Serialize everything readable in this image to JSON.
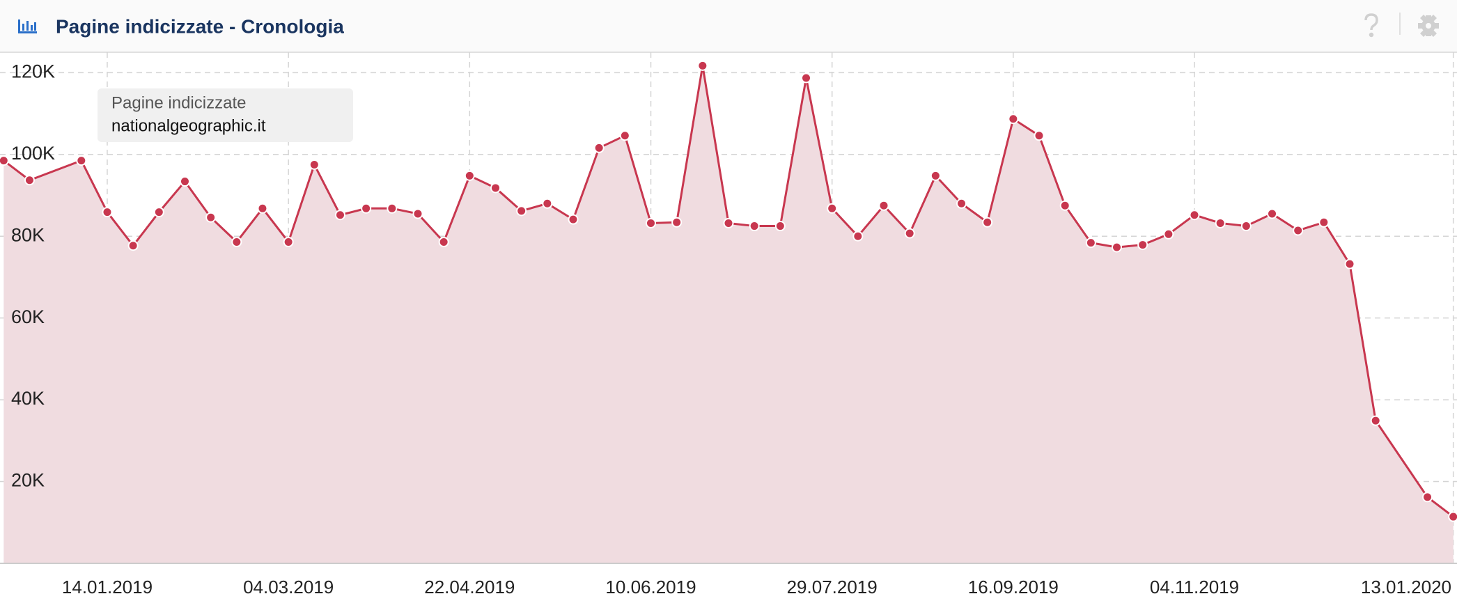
{
  "chart_data": {
    "type": "area",
    "title": "Pagine indicizzate - Cronologia",
    "tooltip_heading": "Pagine indicizzate",
    "x": [
      "17.12.2018",
      "24.12.2018",
      "07.01.2019",
      "14.01.2019",
      "21.01.2019",
      "28.01.2019",
      "04.02.2019",
      "11.02.2019",
      "18.02.2019",
      "25.02.2019",
      "04.03.2019",
      "11.03.2019",
      "18.03.2019",
      "25.03.2019",
      "01.04.2019",
      "08.04.2019",
      "15.04.2019",
      "22.04.2019",
      "29.04.2019",
      "06.05.2019",
      "13.05.2019",
      "20.05.2019",
      "27.05.2019",
      "03.06.2019",
      "10.06.2019",
      "17.06.2019",
      "24.06.2019",
      "01.07.2019",
      "08.07.2019",
      "15.07.2019",
      "22.07.2019",
      "29.07.2019",
      "05.08.2019",
      "12.08.2019",
      "19.08.2019",
      "26.08.2019",
      "02.09.2019",
      "09.09.2019",
      "16.09.2019",
      "23.09.2019",
      "30.09.2019",
      "07.10.2019",
      "14.10.2019",
      "21.10.2019",
      "28.10.2019",
      "04.11.2019",
      "11.11.2019",
      "18.11.2019",
      "25.11.2019",
      "02.12.2019",
      "09.12.2019",
      "16.12.2019",
      "23.12.2019",
      "06.01.2020",
      "13.01.2020"
    ],
    "series": [
      {
        "name": "nationalgeographic.it",
        "color": "#c8374f",
        "fill": "#f0dce0",
        "values": [
          98500,
          93700,
          98500,
          85900,
          77700,
          85900,
          93400,
          84600,
          78600,
          86800,
          78600,
          97500,
          85200,
          86800,
          86800,
          85500,
          78600,
          94800,
          91800,
          86200,
          88000,
          84100,
          101600,
          104600,
          83200,
          83400,
          121700,
          83200,
          82500,
          82500,
          118700,
          86800,
          80000,
          87500,
          80700,
          94800,
          88000,
          83400,
          108700,
          104600,
          87500,
          78400,
          77300,
          77900,
          80500,
          85200,
          83200,
          82500,
          85500,
          81400,
          83400,
          73200,
          34900,
          16200,
          11400
        ]
      }
    ],
    "xlim": [
      "16.12.2018",
      "14.01.2020"
    ],
    "xticks": [
      "14.01.2019",
      "04.03.2019",
      "22.04.2019",
      "10.06.2019",
      "29.07.2019",
      "16.09.2019",
      "04.11.2019",
      "13.01.2020"
    ],
    "ylim": [
      0,
      125000
    ],
    "yticks": [
      {
        "value": 20000,
        "label": "20K"
      },
      {
        "value": 40000,
        "label": "40K"
      },
      {
        "value": 60000,
        "label": "60K"
      },
      {
        "value": 80000,
        "label": "80K"
      },
      {
        "value": 100000,
        "label": "100K"
      },
      {
        "value": 120000,
        "label": "120K"
      }
    ],
    "grid": true
  }
}
